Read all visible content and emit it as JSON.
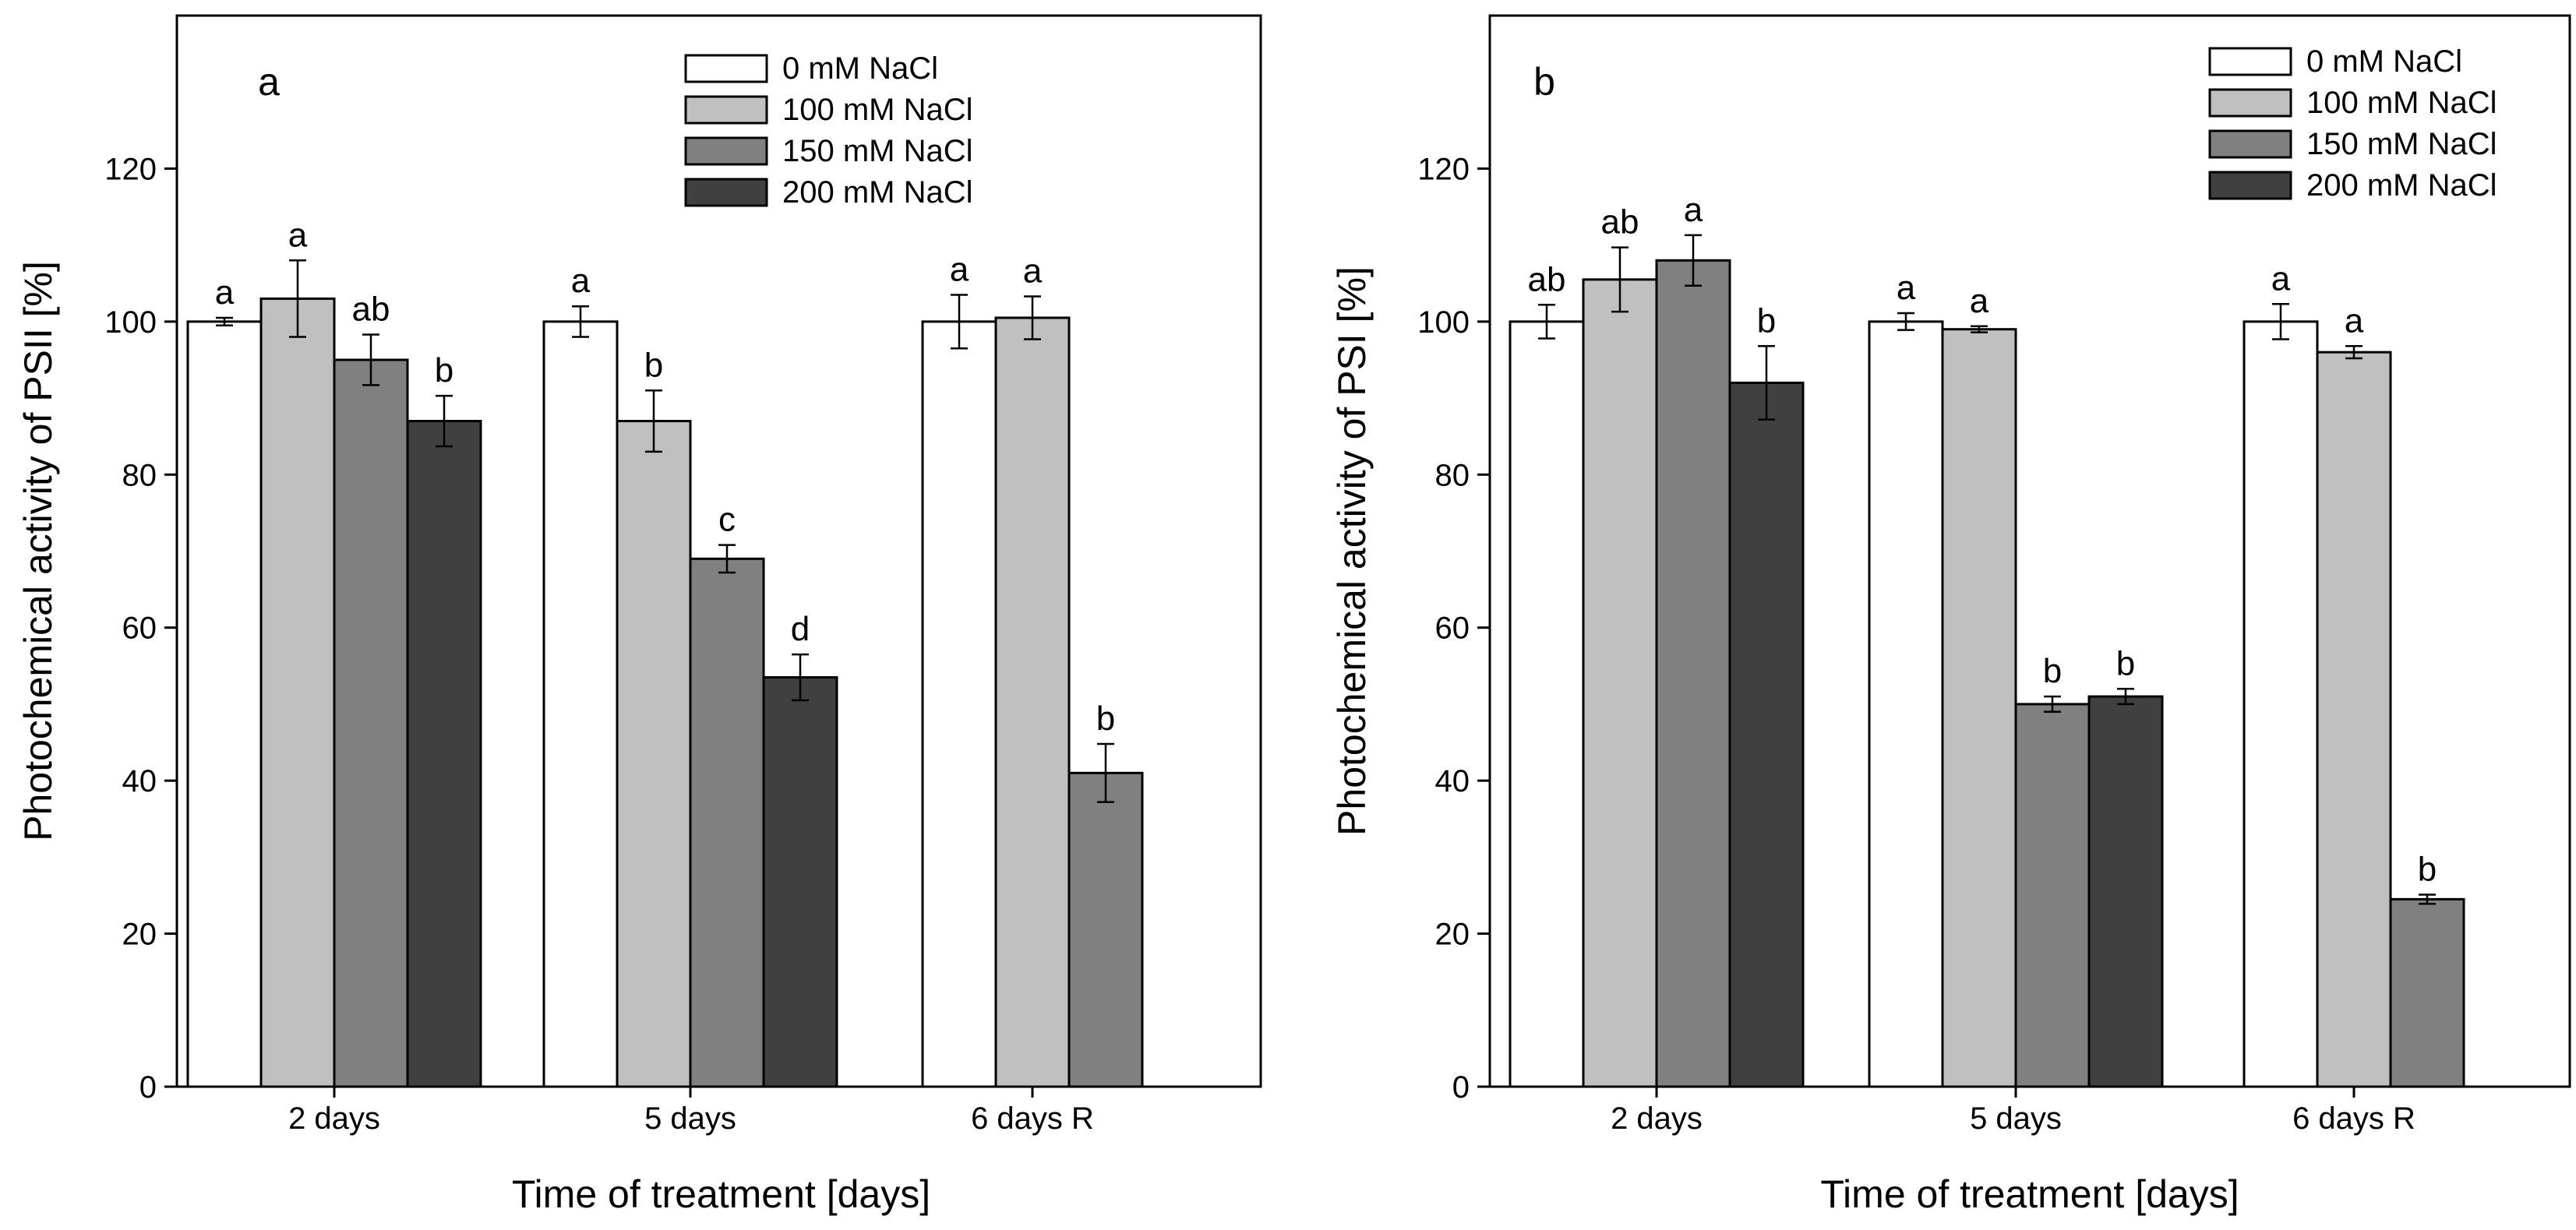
{
  "chart_data": [
    {
      "type": "bar",
      "panel_label": "a",
      "categories": [
        "2 days",
        "5 days",
        "6 days R"
      ],
      "xlabel": "Time of treatment [days]",
      "ylabel": "Photochemical activity of PSII [%]",
      "ylim": [
        0,
        140
      ],
      "yticks": [
        0,
        20,
        40,
        60,
        80,
        100,
        120
      ],
      "legend_position": "top-right",
      "series": [
        {
          "name": "0 mM NaCl",
          "color": "#ffffff",
          "values": [
            100,
            100,
            100
          ],
          "errors": [
            0.5,
            2,
            3.5
          ],
          "letters": [
            "a",
            "a",
            "a"
          ]
        },
        {
          "name": "100 mM NaCl",
          "color": "#c0c0c0",
          "values": [
            103,
            87,
            100.5
          ],
          "errors": [
            5,
            4,
            2.8
          ],
          "letters": [
            "a",
            "b",
            "a"
          ]
        },
        {
          "name": "150 mM NaCl",
          "color": "#808080",
          "values": [
            95,
            69,
            41
          ],
          "errors": [
            3.3,
            1.8,
            3.8
          ],
          "letters": [
            "ab",
            "c",
            "b"
          ]
        },
        {
          "name": "200 mM NaCl",
          "color": "#404040",
          "values": [
            87,
            53.5,
            null
          ],
          "errors": [
            3.3,
            3,
            null
          ],
          "letters": [
            "b",
            "d",
            null
          ]
        }
      ]
    },
    {
      "type": "bar",
      "panel_label": "b",
      "categories": [
        "2 days",
        "5 days",
        "6 days R"
      ],
      "xlabel": "Time of treatment [days]",
      "ylabel": "Photochemical activity of PSI [%]",
      "ylim": [
        0,
        140
      ],
      "yticks": [
        0,
        20,
        40,
        60,
        80,
        100,
        120
      ],
      "legend_position": "top-right",
      "series": [
        {
          "name": "0 mM NaCl",
          "color": "#ffffff",
          "values": [
            100,
            100,
            100
          ],
          "errors": [
            2.2,
            1.1,
            2.3
          ],
          "letters": [
            "ab",
            "a",
            "a"
          ]
        },
        {
          "name": "100 mM NaCl",
          "color": "#c0c0c0",
          "values": [
            105.5,
            99,
            96
          ],
          "errors": [
            4.2,
            0.4,
            0.8
          ],
          "letters": [
            "ab",
            "a",
            "a"
          ]
        },
        {
          "name": "150 mM NaCl",
          "color": "#808080",
          "values": [
            108,
            50,
            24.5
          ],
          "errors": [
            3.3,
            1,
            0.6
          ],
          "letters": [
            "a",
            "b",
            "b"
          ]
        },
        {
          "name": "200 mM NaCl",
          "color": "#404040",
          "values": [
            92,
            51,
            null
          ],
          "errors": [
            4.8,
            1,
            null
          ],
          "letters": [
            "b",
            "b",
            null
          ]
        }
      ]
    }
  ]
}
